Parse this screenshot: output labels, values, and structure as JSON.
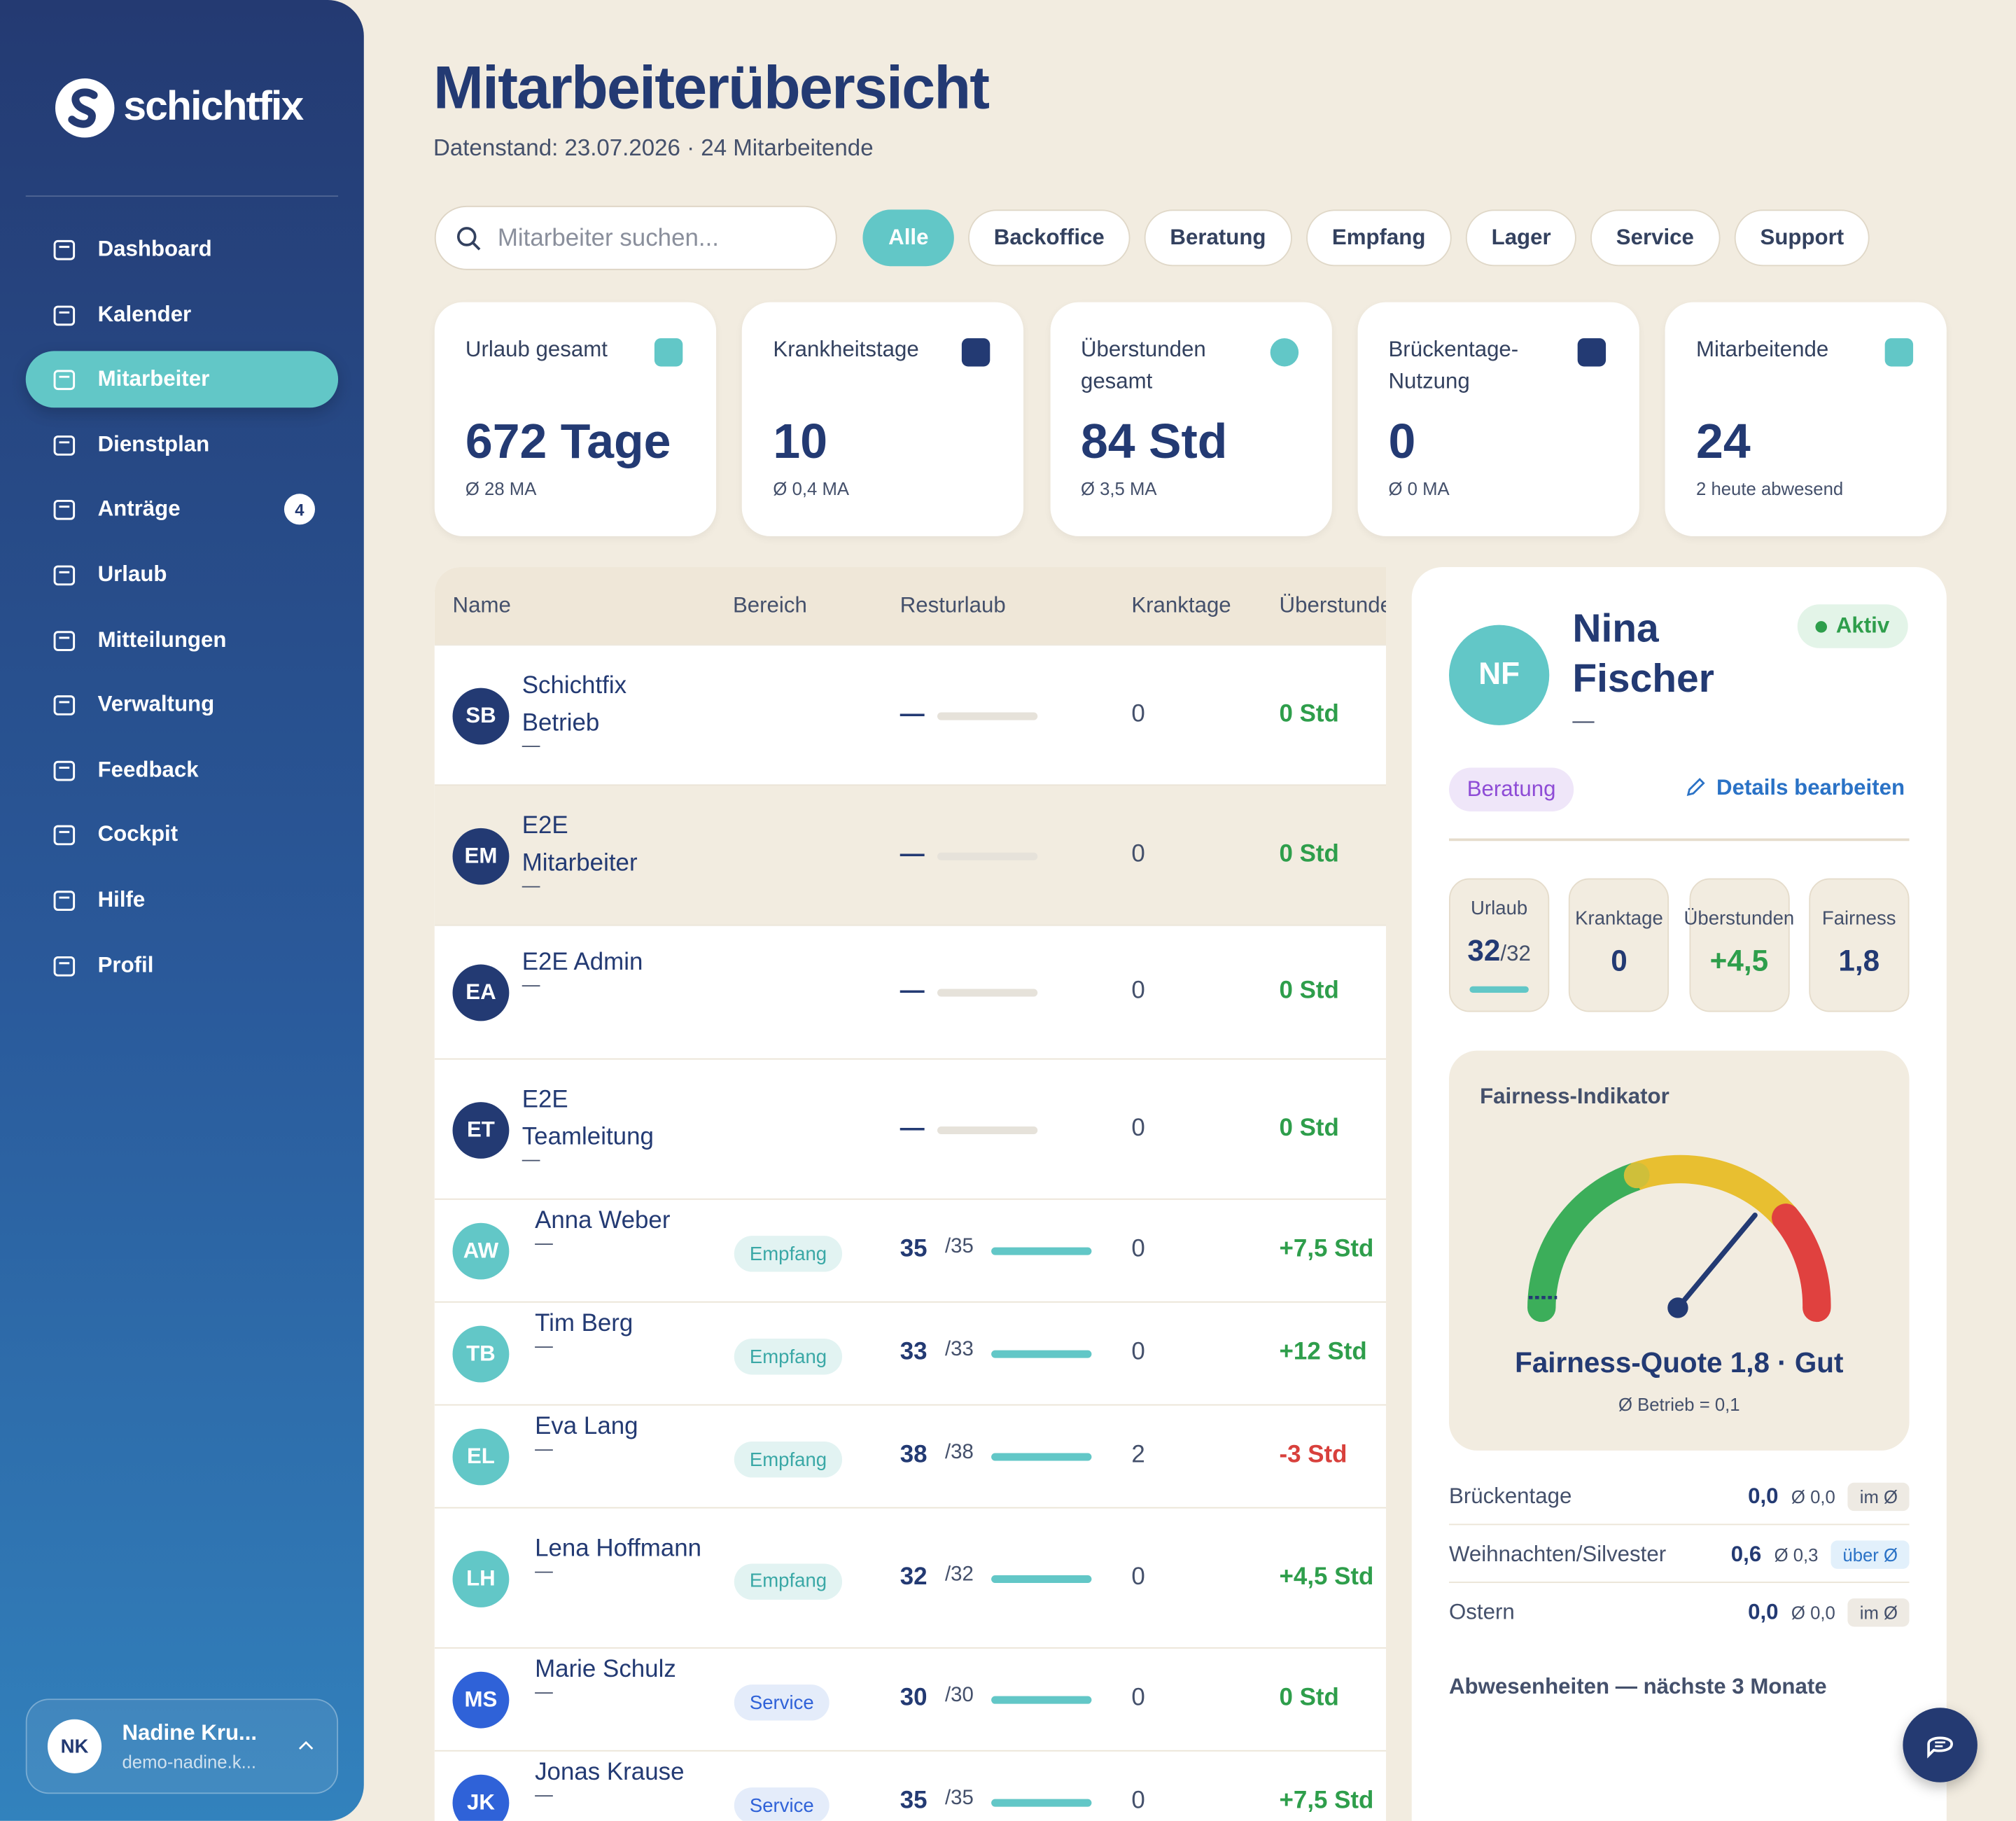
{
  "sidebar": {
    "logo": "schichtfix",
    "nav": [
      {
        "label": "Dashboard"
      },
      {
        "label": "Kalender"
      },
      {
        "label": "Mitarbeiter",
        "active": true
      },
      {
        "label": "Dienstplan"
      },
      {
        "label": "Anträge",
        "badge": "4"
      },
      {
        "label": "Urlaub"
      },
      {
        "label": "Mitteilungen"
      },
      {
        "label": "Verwaltung"
      },
      {
        "label": "Feedback"
      },
      {
        "label": "Cockpit"
      },
      {
        "label": "Hilfe"
      },
      {
        "label": "Profil"
      }
    ],
    "user": {
      "initials": "NK",
      "name": "Nadine Kru...",
      "email": "demo-nadine.k..."
    }
  },
  "header": {
    "title": "Mitarbeiterübersicht",
    "subtitle": "Datenstand: 23.07.2026 · 24 Mitarbeitende"
  },
  "search": {
    "placeholder": "Mitarbeiter suchen..."
  },
  "filters": [
    {
      "label": "Alle",
      "active": true
    },
    {
      "label": "Backoffice"
    },
    {
      "label": "Beratung"
    },
    {
      "label": "Empfang"
    },
    {
      "label": "Lager"
    },
    {
      "label": "Service"
    },
    {
      "label": "Support"
    }
  ],
  "stats": [
    {
      "label": "Urlaub gesamt",
      "value": "672 Tage",
      "sub": "Ø 28 MA"
    },
    {
      "label": "Krankheitstage",
      "value": "10",
      "sub": "Ø 0,4 MA"
    },
    {
      "label": "Überstunden gesamt",
      "value": "84 Std",
      "sub": "Ø 3,5 MA"
    },
    {
      "label": "Brückentage-Nutzung",
      "value": "0",
      "sub": "Ø 0 MA"
    },
    {
      "label": "Mitarbeitende",
      "value": "24",
      "sub": "2 heute abwesend"
    }
  ],
  "table": {
    "columns": [
      "Name",
      "Bereich",
      "Resturlaub",
      "Kranktage",
      "Überstunden"
    ],
    "rows": [
      {
        "initials": "SB",
        "name": "Schichtfix Betrieb",
        "sub": "—",
        "avatar_color": "#233a73",
        "rest": "—",
        "sick": "0",
        "overtime": "0 Std"
      },
      {
        "initials": "EM",
        "name": "E2E Mitarbeiter",
        "sub": "—",
        "avatar_color": "#233a73",
        "rest": "—",
        "sick": "0",
        "overtime": "0 Std",
        "highlight": true
      },
      {
        "initials": "EA",
        "name": "E2E Admin",
        "sub": "—",
        "avatar_color": "#233a73",
        "rest": "—",
        "sick": "0",
        "overtime": "0 Std"
      },
      {
        "initials": "ET",
        "name": "E2E Teamleitung",
        "sub": "—",
        "avatar_color": "#233a73",
        "rest": "—",
        "sick": "0",
        "overtime": "0 Std"
      },
      {
        "initials": "AW",
        "name": "Anna Weber",
        "sub": "—",
        "avatar_color": "#62c7c7",
        "area": "Empfang",
        "rest": 35,
        "total": 35,
        "total_label": "/35",
        "sick": "0",
        "overtime": "+7,5 Std"
      },
      {
        "initials": "TB",
        "name": "Tim Berg",
        "sub": "—",
        "avatar_color": "#62c7c7",
        "area": "Empfang",
        "rest": 33,
        "total": 33,
        "total_label": "/33",
        "sick": "0",
        "overtime": "+12 Std"
      },
      {
        "initials": "EL",
        "name": "Eva Lang",
        "sub": "—",
        "avatar_color": "#62c7c7",
        "area": "Empfang",
        "rest": 38,
        "total": 38,
        "total_label": "/38",
        "sick": "2",
        "overtime": "-3 Std"
      },
      {
        "initials": "LH",
        "name": "Lena Hoffmann",
        "sub": "—",
        "avatar_color": "#62c7c7",
        "area": "Empfang",
        "rest": 32,
        "total": 32,
        "total_label": "/32",
        "sick": "0",
        "overtime": "+4,5 Std"
      },
      {
        "initials": "MS",
        "name": "Marie Schulz",
        "sub": "—",
        "avatar_color": "#2f62d8",
        "area": "Service",
        "rest": 30,
        "total": 30,
        "total_label": "/30",
        "sick": "0",
        "overtime": "0 Std"
      },
      {
        "initials": "JK",
        "name": "Jonas Krause",
        "sub": "—",
        "avatar_color": "#2f62d8",
        "area": "Service",
        "rest": 35,
        "total": 35,
        "total_label": "/35",
        "sick": "0",
        "overtime": "+7,5 Std"
      }
    ]
  },
  "detail": {
    "initials": "NF",
    "name": "Nina Fischer",
    "sub": "—",
    "status": "Aktiv",
    "area": "Beratung",
    "edit": "Details bearbeiten",
    "mini": [
      {
        "label": "Urlaub",
        "value": "32",
        "suffix": "/32"
      },
      {
        "label": "Kranktage",
        "value": "0"
      },
      {
        "label": "Überstunden",
        "value": "+4,5"
      },
      {
        "label": "Fairness",
        "value": "1,8"
      }
    ],
    "gauge": {
      "title": "Fairness-Indikator",
      "quote": "Fairness-Quote 1,8 · Gut",
      "sub": "Ø Betrieb = 0,1"
    },
    "compare": [
      {
        "label": "Brückentage",
        "value": "0,0",
        "avg": "Ø 0,0",
        "tag": "im Ø"
      },
      {
        "label": "Weihnachten/Silvester",
        "value": "0,6",
        "avg": "Ø 0,3",
        "tag": "über Ø",
        "above": true
      },
      {
        "label": "Ostern",
        "value": "0,0",
        "avg": "Ø 0,0",
        "tag": "im Ø"
      }
    ],
    "absences": "Abwesenheiten — nächste 3 Monate"
  }
}
